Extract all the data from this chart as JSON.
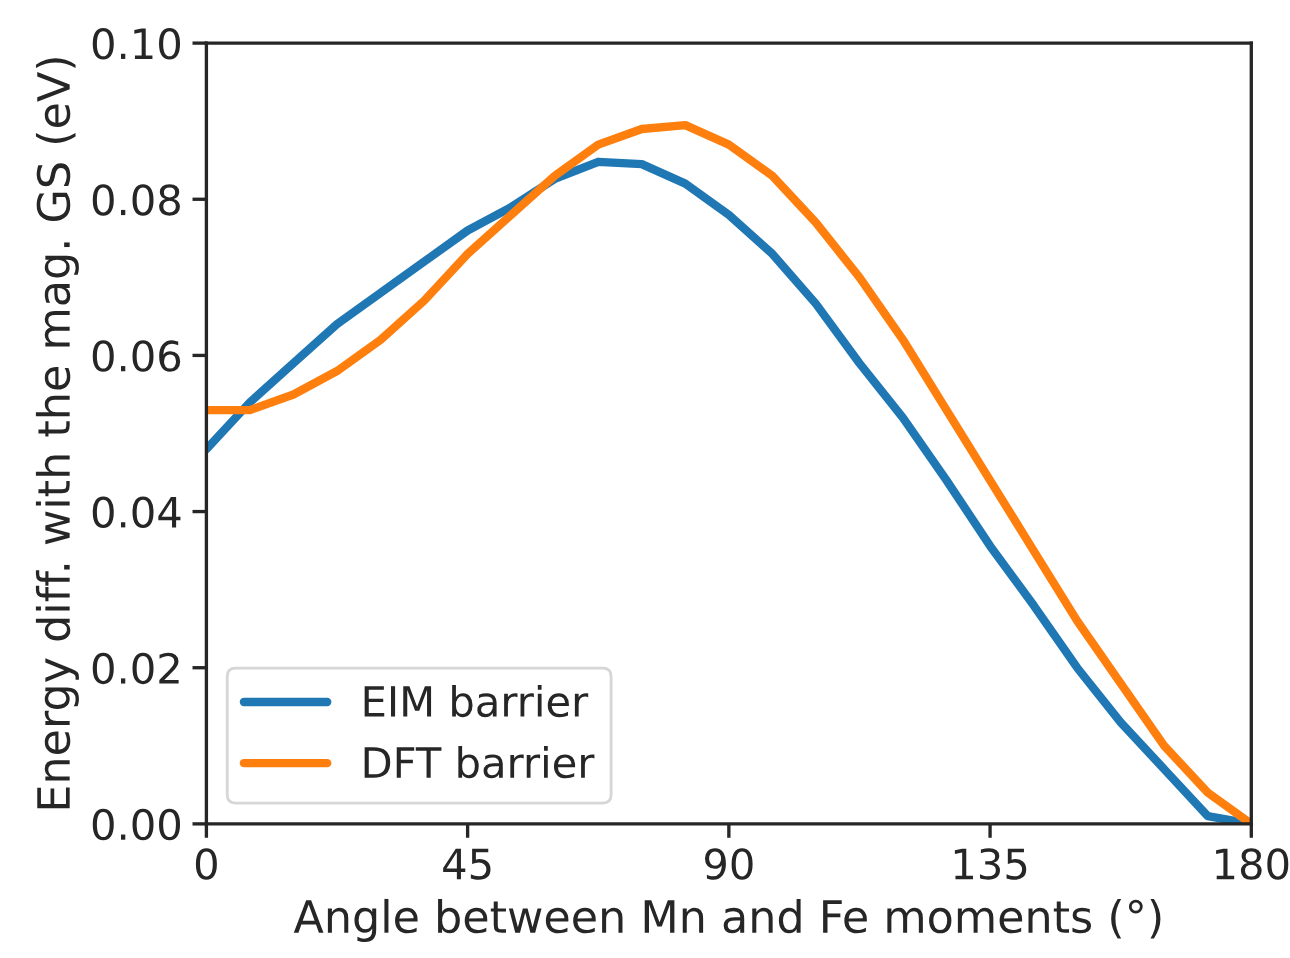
{
  "chart_data": {
    "type": "line",
    "xlabel": "Angle between Mn and Fe moments (°)",
    "ylabel": "Energy diff. with the mag. GS (eV)",
    "x": [
      0,
      7.5,
      15,
      22.5,
      30,
      37.5,
      45,
      52.5,
      60,
      67.5,
      75,
      82.5,
      90,
      97.5,
      105,
      112.5,
      120,
      127.5,
      135,
      142.5,
      150,
      157.5,
      165,
      172.5,
      180
    ],
    "series": [
      {
        "name": "EIM barrier",
        "color": "#1f77b4",
        "values": [
          0.048,
          0.054,
          0.059,
          0.064,
          0.068,
          0.072,
          0.076,
          0.079,
          0.0826,
          0.0848,
          0.0845,
          0.082,
          0.078,
          0.073,
          0.0666,
          0.059,
          0.052,
          0.044,
          0.0356,
          0.028,
          0.02,
          0.013,
          0.007,
          0.001,
          0.0
        ]
      },
      {
        "name": "DFT barrier",
        "color": "#ff7f0e",
        "values": [
          0.053,
          0.053,
          0.055,
          0.058,
          0.062,
          0.067,
          0.073,
          0.078,
          0.083,
          0.087,
          0.089,
          0.0895,
          0.087,
          0.083,
          0.077,
          0.07,
          0.062,
          0.053,
          0.044,
          0.035,
          0.026,
          0.018,
          0.01,
          0.004,
          0.0
        ]
      }
    ],
    "xlim": [
      0,
      180
    ],
    "xticks": [
      0,
      45,
      90,
      135,
      180
    ],
    "ylim": [
      0,
      0.1
    ],
    "yticks": [
      {
        "value": 0,
        "label": "0.00"
      },
      {
        "value": 0.02,
        "label": "0.02"
      },
      {
        "value": 0.04,
        "label": "0.04"
      },
      {
        "value": 0.06,
        "label": "0.06"
      },
      {
        "value": 0.08,
        "label": "0.08"
      },
      {
        "value": 0.1,
        "label": "0.10"
      }
    ],
    "legend": "lower left",
    "grid": false,
    "marker": "none",
    "line_style": "solid"
  }
}
